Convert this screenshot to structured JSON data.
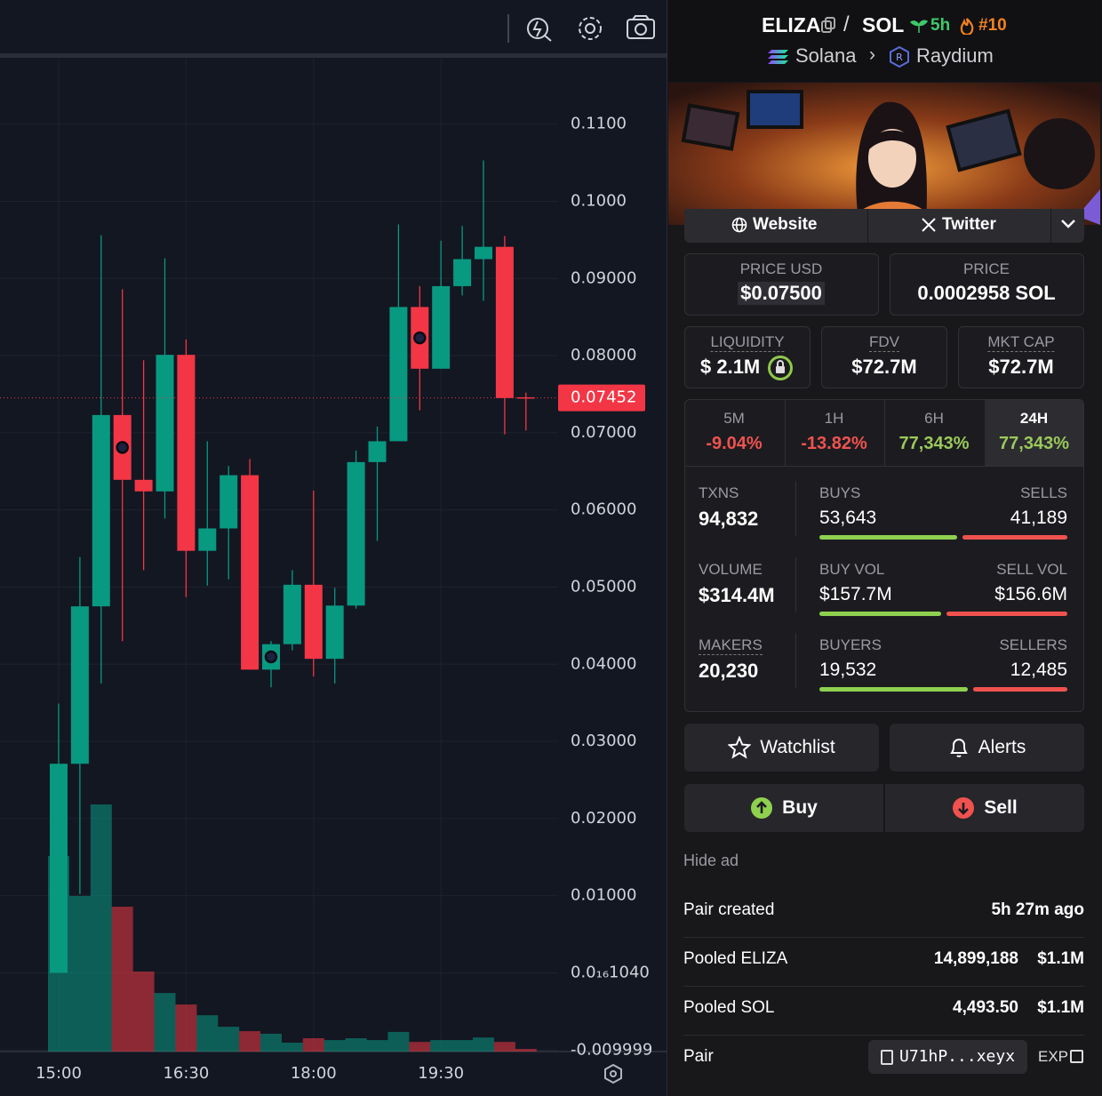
{
  "chart_data": {
    "type": "candlestick",
    "x": [
      "15:00",
      null,
      null,
      null,
      null,
      null,
      "16:30",
      null,
      null,
      null,
      null,
      null,
      "18:00",
      null,
      null,
      null,
      null,
      null,
      "19:30",
      null,
      null,
      null,
      null
    ],
    "open": [
      0,
      0.0271,
      0.0475,
      0.0723,
      0.0639,
      0.0624,
      0.0801,
      0.0547,
      0.0576,
      0.0645,
      0.0393,
      0.0426,
      0.0503,
      0.0407,
      0.0476,
      0.0662,
      0.0689,
      0.0863,
      0.0783,
      0.089,
      0.0925,
      0.0941,
      0.0746
    ],
    "high": [
      0.0349,
      0.0539,
      0.0956,
      0.0886,
      0.0794,
      0.0926,
      0.0821,
      0.0689,
      0.0657,
      0.0666,
      0.043,
      0.0522,
      0.0625,
      0.0499,
      0.0677,
      0.0708,
      0.097,
      0.089,
      0.0949,
      0.0968,
      0.1053,
      0.0955,
      0.0752
    ],
    "low": [
      0,
      0.0102,
      0.0375,
      0.043,
      0.0522,
      0.0589,
      0.0487,
      0.0502,
      0.051,
      0.0393,
      0.037,
      0.0418,
      0.0384,
      0.0375,
      0.0472,
      0.056,
      0.0689,
      0.0729,
      0.0783,
      0.0878,
      0.0871,
      0.0698,
      0.0703
    ],
    "close": [
      0.0271,
      0.0475,
      0.0723,
      0.0639,
      0.0624,
      0.0801,
      0.0547,
      0.0576,
      0.0645,
      0.0393,
      0.0426,
      0.0503,
      0.0407,
      0.0476,
      0.0662,
      0.0689,
      0.0863,
      0.0783,
      0.089,
      0.0925,
      0.0941,
      0.0745,
      0.07452
    ],
    "volume": [
      52.8,
      42.0,
      66.7,
      39.1,
      21.6,
      15.8,
      12.7,
      9.8,
      6.7,
      5.5,
      4.8,
      2.4,
      3.6,
      3.1,
      3.6,
      3.1,
      5.3,
      2.6,
      3.1,
      3.1,
      3.8,
      2.6,
      0.7
    ],
    "markers": [
      3,
      10,
      17
    ],
    "up_color": "#089981",
    "down_color": "#f23645",
    "last_price": 0.07452,
    "ylim": [
      -0.0102,
      0.1186
    ],
    "yticks": [
      {
        "value": 0.11,
        "label": "0.1100"
      },
      {
        "value": 0.1,
        "label": "0.1000"
      },
      {
        "value": 0.09,
        "label": "0.09000"
      },
      {
        "value": 0.08,
        "label": "0.08000"
      },
      {
        "value": 0.07,
        "label": "0.07000"
      },
      {
        "value": 0.06,
        "label": "0.06000"
      },
      {
        "value": 0.05,
        "label": "0.05000"
      },
      {
        "value": 0.04,
        "label": "0.04000"
      },
      {
        "value": 0.03,
        "label": "0.03000"
      },
      {
        "value": 0.02,
        "label": "0.02000"
      },
      {
        "value": 0.01,
        "label": "0.01000"
      },
      {
        "value": 1.04e-17,
        "label": "0.0₁₆1040"
      },
      {
        "value": -0.009999,
        "label": "-0.009999"
      }
    ],
    "grid": true
  },
  "header": {
    "base": "ELIZA",
    "quote": "SOL",
    "age": "5h",
    "rank": "#10",
    "chain": "Solana",
    "dex": "Raydium"
  },
  "links": {
    "website": "Website",
    "twitter": "Twitter"
  },
  "prices": {
    "price_usd_label": "PRICE USD",
    "price_usd": "$0.07500",
    "price_label": "PRICE",
    "price": "0.0002958 SOL"
  },
  "metrics": [
    {
      "label": "LIQUIDITY",
      "value": "$ 2.1M"
    },
    {
      "label": "FDV",
      "value": "$72.7M"
    },
    {
      "label": "MKT CAP",
      "value": "$72.7M"
    }
  ],
  "changes": [
    {
      "label": "5M",
      "value": "-9.04%"
    },
    {
      "label": "1H",
      "value": "-13.82%"
    },
    {
      "label": "6H",
      "value": "77,343%"
    },
    {
      "label": "24H",
      "value": "77,343%"
    }
  ],
  "stats": [
    {
      "label": "TXNS",
      "value": "94,832",
      "left_label": "BUYS",
      "left": "53,643",
      "right_label": "SELLS",
      "right": "41,189"
    },
    {
      "label": "VOLUME",
      "value": "$314.4M",
      "left_label": "BUY VOL",
      "left": "$157.7M",
      "right_label": "SELL VOL",
      "right": "$156.6M"
    },
    {
      "label": "MAKERS",
      "value": "20,230",
      "left_label": "BUYERS",
      "left": "19,532",
      "right_label": "SELLERS",
      "right": "12,485"
    }
  ],
  "actions": {
    "watchlist": "Watchlist",
    "alerts": "Alerts",
    "buy": "Buy",
    "sell": "Sell",
    "hide_ad": "Hide ad"
  },
  "info": [
    {
      "label": "Pair created",
      "value": "5h 27m ago"
    },
    {
      "label": "Pooled ELIZA",
      "value": "14,899,188",
      "usd": "$1.1M"
    },
    {
      "label": "Pooled SOL",
      "value": "4,493.50",
      "usd": "$1.1M"
    },
    {
      "label": "Pair",
      "value": "U71hP...xeyx",
      "usd": "EXP"
    }
  ]
}
